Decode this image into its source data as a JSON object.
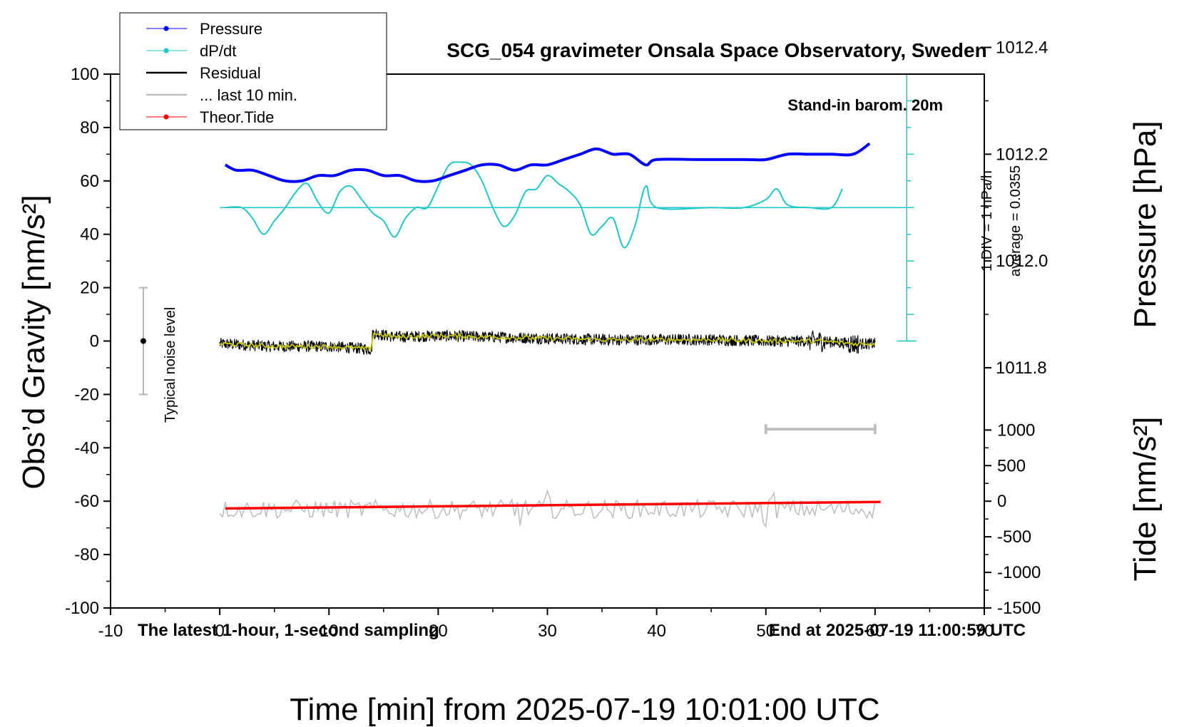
{
  "chart_data": {
    "type": "line",
    "title": "SCG_054 gravimeter Onsala Space Observatory, Sweden",
    "xlabel": "Time [min] from 2025-07-19 10:01:00 UTC",
    "ylabel_left": "Obs’d Gravity [nm/s²]",
    "ylabel_right_top": "Pressure [hPa]",
    "ylabel_right_bottom": "Tide [nm/s²]",
    "xlim": [
      -10,
      70
    ],
    "ylim_left": [
      -100,
      100
    ],
    "x_ticks": [
      "-10",
      "0",
      "10",
      "20",
      "30",
      "40",
      "50",
      "60",
      "70"
    ],
    "y_ticks_left": [
      "-100",
      "-80",
      "-60",
      "-40",
      "-20",
      "0",
      "20",
      "40",
      "60",
      "80",
      "100"
    ],
    "pressure_ticks": [
      "1011.8",
      "1012.0",
      "1012.2",
      "1012.4"
    ],
    "tide_ticks": [
      "-1500",
      "-1000",
      "-500",
      "0",
      "500",
      "1000"
    ],
    "annotations": {
      "stand_in": "Stand-in barom. 20m",
      "div_note": "1 DIV = 1 hPa/h",
      "average_note": "average = 0.0355",
      "noise_note": "Typical noise level",
      "latest_note": "The latest 1-hour, 1-second sampling",
      "end_note": "End at 2025-07-19 11:00:59 UTC"
    },
    "legend": [
      {
        "label": "Pressure",
        "color": "#0000ff",
        "marker": true
      },
      {
        "label": "dP/dt",
        "color": "#20c8c8",
        "marker": true
      },
      {
        "label": "Residual",
        "color": "#000000",
        "marker": false
      },
      {
        "label": "... last 10 min.",
        "color": "#c0c0c0",
        "marker": false
      },
      {
        "label": "Theor.Tide",
        "color": "#ff0000",
        "marker": true
      }
    ],
    "series": [
      {
        "name": "Pressure",
        "unit": "hPa",
        "color": "#0000ff",
        "x": [
          0.5,
          1.5,
          3,
          4.5,
          6,
          7.5,
          9,
          10.5,
          12,
          13.5,
          15,
          16.5,
          18,
          19.5,
          21,
          22.5,
          24,
          25.5,
          27,
          28.5,
          30,
          31.5,
          33,
          34.5,
          36,
          37.5,
          39,
          40,
          44,
          48,
          50,
          52,
          54,
          56,
          58,
          59.5
        ],
        "values": [
          1012.18,
          1012.17,
          1012.17,
          1012.16,
          1012.15,
          1012.15,
          1012.16,
          1012.16,
          1012.17,
          1012.17,
          1012.16,
          1012.16,
          1012.15,
          1012.15,
          1012.16,
          1012.17,
          1012.18,
          1012.18,
          1012.17,
          1012.18,
          1012.18,
          1012.19,
          1012.2,
          1012.21,
          1012.2,
          1012.2,
          1012.18,
          1012.19,
          1012.19,
          1012.19,
          1012.19,
          1012.2,
          1012.2,
          1012.2,
          1012.2,
          1012.22
        ]
      },
      {
        "name": "dP/dt",
        "unit": "hPa/h",
        "color": "#20c8c8",
        "x": [
          0.5,
          2,
          3,
          4,
          5,
          6,
          7,
          8,
          9,
          10,
          11,
          12,
          13,
          14,
          15,
          16,
          17,
          18,
          19,
          20,
          21,
          22,
          23,
          24,
          25,
          26,
          27,
          28,
          29,
          30,
          31,
          32,
          33,
          34,
          35,
          36,
          37,
          38,
          39,
          40,
          45,
          48,
          50,
          51,
          52,
          54,
          56,
          57
        ],
        "values": [
          0,
          0,
          -0.2,
          -0.5,
          -0.25,
          0,
          0.3,
          0.45,
          0.1,
          -0.1,
          0.3,
          0.4,
          0.15,
          -0.1,
          -0.25,
          -0.55,
          -0.2,
          0,
          0,
          0.4,
          0.8,
          0.85,
          0.8,
          0.5,
          0,
          -0.35,
          -0.15,
          0.3,
          0.35,
          0.6,
          0.45,
          0.3,
          0.05,
          -0.5,
          -0.35,
          -0.2,
          -0.75,
          -0.35,
          0.4,
          0,
          0,
          0,
          0.15,
          0.35,
          0.05,
          0,
          0,
          0.35
        ]
      },
      {
        "name": "Residual",
        "unit": "nm/s²",
        "color": "#000000",
        "x": [
          0,
          5,
          10,
          13.9,
          14,
          16,
          20,
          25,
          30,
          35,
          40,
          45,
          50,
          55,
          58,
          60
        ],
        "values": [
          -1,
          -2,
          -2,
          -3,
          3,
          1.5,
          2,
          1.5,
          1,
          0.5,
          0.5,
          0.5,
          0,
          0,
          -1,
          -1
        ]
      },
      {
        "name": "... last 10 min.",
        "unit": "nm/s²",
        "color": "#c0c0c0",
        "x": [
          50,
          60
        ],
        "values": [
          -33,
          -33
        ]
      },
      {
        "name": "Theor.Tide",
        "unit": "nm/s²",
        "color": "#ff0000",
        "x": [
          0.5,
          60.5
        ],
        "values": [
          -102,
          -10
        ]
      }
    ]
  }
}
